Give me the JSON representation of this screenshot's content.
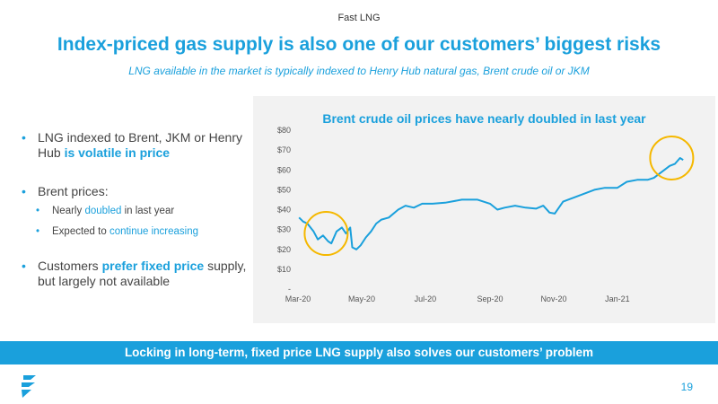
{
  "header": {
    "label": "Fast LNG"
  },
  "title": "Index-priced gas supply is also one of our customers’ biggest risks",
  "subtitle": "LNG available in the market is typically indexed to Henry Hub natural gas, Brent crude oil or JKM",
  "bullets": {
    "b1_pre": "LNG indexed to Brent, JKM or Henry Hub ",
    "b1_hl": "is volatile in price",
    "b2": "Brent prices:",
    "b2_s1_pre": "Nearly ",
    "b2_s1_hl": "doubled",
    "b2_s1_post": " in last year",
    "b2_s2_pre": "Expected to ",
    "b2_s2_hl": "continue increasing",
    "b3_pre": "Customers ",
    "b3_hl": "prefer fixed price",
    "b3_post": " supply, but largely not available"
  },
  "colors": {
    "accent": "#1aa0dc",
    "circle": "#f5b800",
    "panel": "#f2f2f2"
  },
  "banner": "Locking in long-term, fixed price LNG supply also solves our customers’ problem",
  "page_number": "19",
  "logo_icon": "flame-logo-icon",
  "chart_data": {
    "type": "line",
    "title": "Brent crude oil prices have nearly doubled in last year",
    "xlabel": "",
    "ylabel": "",
    "ylim": [
      0,
      80
    ],
    "yticks": [
      0,
      10,
      20,
      30,
      40,
      50,
      60,
      70,
      80
    ],
    "ytick_labels": [
      "-",
      "$10",
      "$20",
      "$30",
      "$40",
      "$50",
      "$60",
      "$70",
      "$80"
    ],
    "xlim": [
      "2020-03-01",
      "2021-03-10"
    ],
    "xticks": [
      "2020-03-01",
      "2020-05-01",
      "2020-07-01",
      "2020-09-01",
      "2020-11-01",
      "2021-01-01"
    ],
    "xtick_labels": [
      "Mar-20",
      "May-20",
      "Jul-20",
      "Sep-20",
      "Nov-20",
      "Jan-21"
    ],
    "grid": false,
    "series": [
      {
        "x": [
          "2020-03-02",
          "2020-03-06",
          "2020-03-10",
          "2020-03-16",
          "2020-03-20",
          "2020-03-25",
          "2020-03-30",
          "2020-04-02",
          "2020-04-07",
          "2020-04-12",
          "2020-04-16",
          "2020-04-20",
          "2020-04-22",
          "2020-04-26",
          "2020-04-30",
          "2020-05-05",
          "2020-05-10",
          "2020-05-15",
          "2020-05-20",
          "2020-05-27",
          "2020-06-05",
          "2020-06-12",
          "2020-06-20",
          "2020-06-28",
          "2020-07-08",
          "2020-07-20",
          "2020-08-05",
          "2020-08-20",
          "2020-09-01",
          "2020-09-08",
          "2020-09-15",
          "2020-09-25",
          "2020-10-05",
          "2020-10-15",
          "2020-10-22",
          "2020-10-28",
          "2020-11-02",
          "2020-11-10",
          "2020-11-20",
          "2020-11-30",
          "2020-12-10",
          "2020-12-20",
          "2021-01-01",
          "2021-01-10",
          "2021-01-20",
          "2021-01-30",
          "2021-02-05",
          "2021-02-10",
          "2021-02-15",
          "2021-02-20",
          "2021-02-25",
          "2021-03-02",
          "2021-03-05"
        ],
        "y": [
          36,
          34,
          33,
          29,
          25,
          27,
          24,
          23,
          29,
          31,
          28,
          31,
          21,
          20,
          22,
          26,
          29,
          33,
          35,
          36,
          40,
          42,
          41,
          43,
          43,
          43.5,
          45,
          45,
          43,
          40,
          41,
          42,
          41,
          40.5,
          42,
          38.5,
          38,
          44,
          46,
          48,
          50,
          51,
          51,
          54,
          55,
          55,
          56,
          58,
          60,
          62,
          63,
          66,
          65
        ]
      }
    ],
    "annotations": [
      {
        "shape": "circle",
        "x": "2020-03-28",
        "y": 28,
        "label": ""
      },
      {
        "shape": "circle",
        "x": "2021-02-22",
        "y": 66,
        "label": ""
      }
    ]
  }
}
